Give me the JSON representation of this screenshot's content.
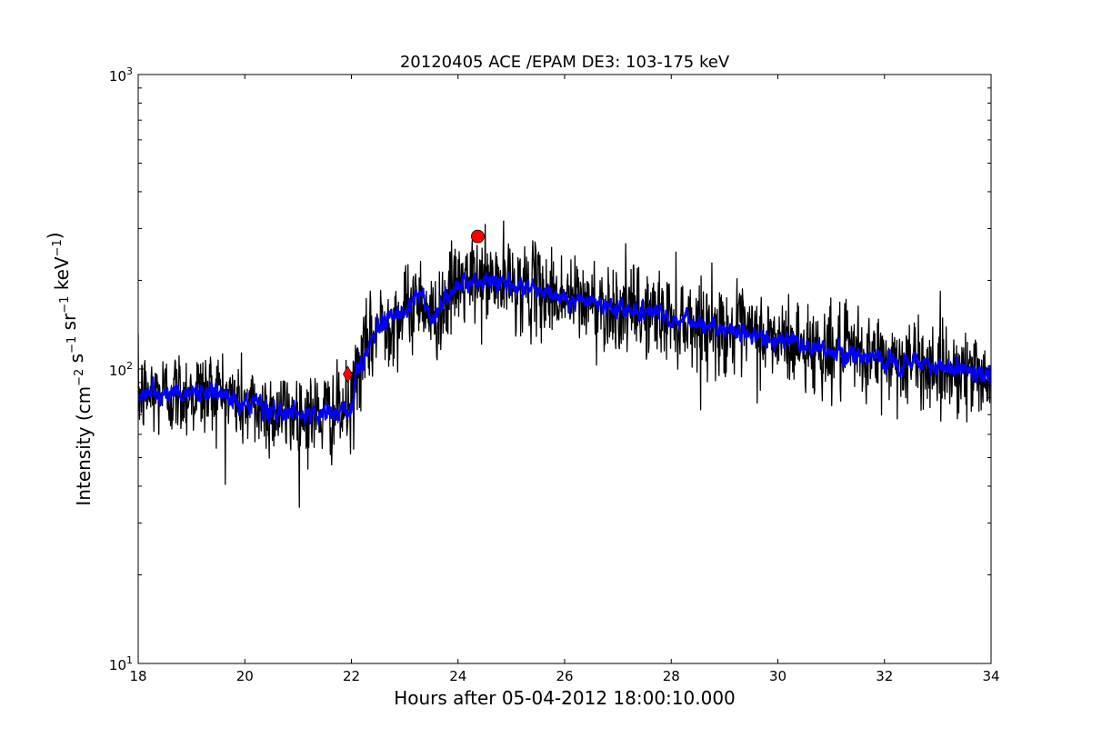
{
  "chart_data": {
    "type": "line",
    "title": "20120405 ACE /EPAM DE3: 103-175 keV",
    "xlabel": "Hours after 05-04-2012 18:00:10.000",
    "ylabel": {
      "prefix": "Intensity (cm",
      "parts": [
        {
          "base": "cm",
          "exp": "−2"
        },
        {
          "base": " s",
          "exp": "−1"
        },
        {
          "base": " sr",
          "exp": "−1"
        },
        {
          "base": " keV",
          "exp": "−1"
        }
      ],
      "suffix": ")"
    },
    "xlim": [
      18,
      34
    ],
    "ylim": [
      10,
      1000
    ],
    "yscale": "log",
    "x_ticks": [
      "18",
      "20",
      "22",
      "24",
      "26",
      "28",
      "30",
      "32",
      "34"
    ],
    "y_ticks": [
      {
        "value": 10,
        "base": "10",
        "exp": "1"
      },
      {
        "value": 100,
        "base": "10",
        "exp": "2"
      },
      {
        "value": 1000,
        "base": "10",
        "exp": "3"
      }
    ],
    "grid": false,
    "series": [
      {
        "role": "raw",
        "color": "#000000",
        "noise_sigma_log10": 0.075,
        "trend": [
          [
            18.0,
            82
          ],
          [
            19.0,
            83
          ],
          [
            19.5,
            84
          ],
          [
            20.0,
            75
          ],
          [
            20.5,
            72
          ],
          [
            21.0,
            70
          ],
          [
            21.5,
            70
          ],
          [
            22.0,
            72
          ],
          [
            22.1,
            98
          ],
          [
            22.5,
            140
          ],
          [
            23.0,
            155
          ],
          [
            23.3,
            180
          ],
          [
            23.5,
            145
          ],
          [
            24.0,
            195
          ],
          [
            24.5,
            200
          ],
          [
            25.0,
            195
          ],
          [
            25.5,
            185
          ],
          [
            26.0,
            175
          ],
          [
            27.0,
            160
          ],
          [
            28.0,
            150
          ],
          [
            29.0,
            135
          ],
          [
            30.0,
            125
          ],
          [
            31.0,
            115
          ],
          [
            32.0,
            108
          ],
          [
            33.0,
            102
          ],
          [
            34.0,
            95
          ]
        ]
      },
      {
        "role": "smoothed",
        "color": "#0000ff",
        "noise_sigma_log10": 0.03,
        "trend": [
          [
            18.0,
            82
          ],
          [
            19.0,
            83
          ],
          [
            19.5,
            84
          ],
          [
            20.0,
            75
          ],
          [
            20.5,
            72
          ],
          [
            21.0,
            70
          ],
          [
            21.5,
            70
          ],
          [
            22.0,
            72
          ],
          [
            22.1,
            98
          ],
          [
            22.5,
            140
          ],
          [
            23.0,
            155
          ],
          [
            23.3,
            180
          ],
          [
            23.5,
            145
          ],
          [
            24.0,
            195
          ],
          [
            24.5,
            200
          ],
          [
            25.0,
            195
          ],
          [
            25.5,
            185
          ],
          [
            26.0,
            175
          ],
          [
            27.0,
            160
          ],
          [
            28.0,
            150
          ],
          [
            29.0,
            135
          ],
          [
            30.0,
            125
          ],
          [
            31.0,
            115
          ],
          [
            32.0,
            108
          ],
          [
            33.0,
            102
          ],
          [
            34.0,
            95
          ]
        ]
      }
    ],
    "markers": [
      {
        "kind": "diamond",
        "x": 21.93,
        "y": 96,
        "color": "#ff0000"
      },
      {
        "kind": "circle",
        "x": 24.37,
        "y": 282,
        "color": "#ff0000"
      }
    ]
  }
}
